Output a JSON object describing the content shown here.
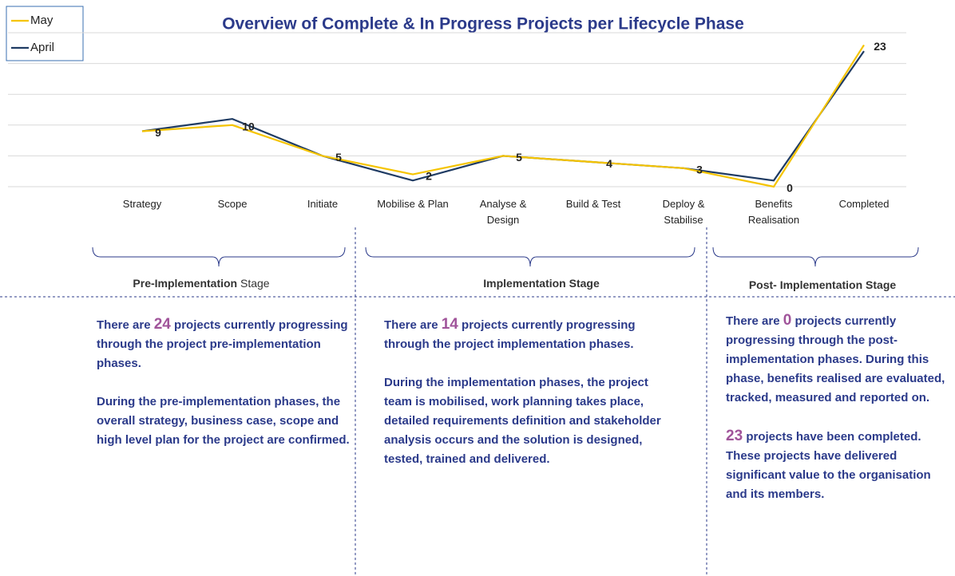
{
  "chart_data": {
    "type": "line",
    "title": "Overview of Complete & In Progress Projects per Lifecycle Phase",
    "categories": [
      "Strategy",
      "Scope",
      "Initiate",
      "Mobilise & Plan",
      "Analyse & Design",
      "Build & Test",
      "Deploy & Stabilise",
      "Benefits Realisation",
      "Completed"
    ],
    "series": [
      {
        "name": "May",
        "color": "#f5c400",
        "values": [
          9,
          10,
          5,
          2,
          5,
          4,
          3,
          0,
          23
        ]
      },
      {
        "name": "April",
        "color": "#1f3b63",
        "values": [
          9,
          11,
          5,
          1,
          5,
          4,
          3,
          1,
          22
        ]
      }
    ],
    "ylim": [
      0,
      25
    ],
    "yticks": [
      0,
      5,
      10,
      15,
      20,
      25
    ],
    "grid": true,
    "legend": "top-left"
  },
  "stages": [
    {
      "bold": "Pre-Implementation",
      "rest": "Stage",
      "intro": {
        "before": "There are",
        "count": 24,
        "after": "projects currently progressing through the project pre-implementation phases."
      },
      "body": "During the pre-implementation phases, the overall strategy, business case, scope and high level plan for the project are confirmed."
    },
    {
      "bold": "Implementation Stage",
      "intro": {
        "before": "There are",
        "count": 14,
        "after": "projects currently progressing through the project implementation phases."
      },
      "body": "During the implementation phases, the project team is mobilised, work planning takes place, detailed requirements definition and stakeholder analysis occurs and the solution is designed, tested, trained and delivered."
    },
    {
      "bold": "Post- Implementation Stage",
      "intro": {
        "before": "There are",
        "count": 0,
        "after": "projects currently progressing through the post-implementation phases. During this phase, benefits realised are evaluated, tracked, measured and reported on."
      },
      "completed": {
        "count": 23,
        "after": "projects have been completed. These projects have delivered significant value to the organisation and its members."
      }
    }
  ]
}
